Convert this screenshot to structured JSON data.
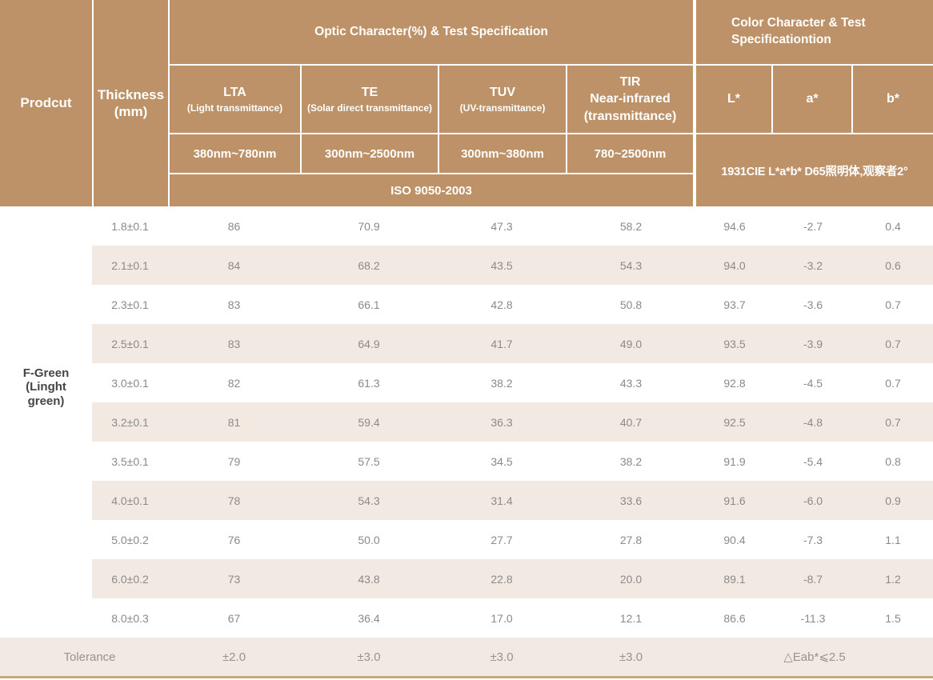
{
  "header": {
    "product": "Prodcut",
    "thickness": "Thickness\n(mm)",
    "optic_group": "Optic Character(%) & Test Specification",
    "color_group": "Color Character & Test\nSpecificationtion",
    "optic_columns": [
      {
        "title": "LTA",
        "sub": "(Light transmittance)",
        "range": "380nm~780nm"
      },
      {
        "title": "TE",
        "sub": "(Solar direct transmittance)",
        "range": "300nm~2500nm"
      },
      {
        "title": "TUV",
        "sub": "(UV-transmittance)",
        "range": "300nm~380nm"
      },
      {
        "title": "TIR\nNear-infrared\n(transmittance)",
        "sub": "",
        "range": "780~2500nm"
      }
    ],
    "optic_standard": "ISO 9050-2003",
    "color_columns": [
      "L*",
      "a*",
      "b*"
    ],
    "color_standard": "1931CIE L*a*b*  D65照明体,观察者2°"
  },
  "product": {
    "name": "F-Green\n(Linght\ngreen)"
  },
  "rows": [
    {
      "thickness": "1.8±0.1",
      "values": [
        "86",
        "70.9",
        "47.3",
        "58.2",
        "94.6",
        "-2.7",
        "0.4"
      ]
    },
    {
      "thickness": "2.1±0.1",
      "values": [
        "84",
        "68.2",
        "43.5",
        "54.3",
        "94.0",
        "-3.2",
        "0.6"
      ]
    },
    {
      "thickness": "2.3±0.1",
      "values": [
        "83",
        "66.1",
        "42.8",
        "50.8",
        "93.7",
        "-3.6",
        "0.7"
      ]
    },
    {
      "thickness": "2.5±0.1",
      "values": [
        "83",
        "64.9",
        "41.7",
        "49.0",
        "93.5",
        "-3.9",
        "0.7"
      ]
    },
    {
      "thickness": "3.0±0.1",
      "values": [
        "82",
        "61.3",
        "38.2",
        "43.3",
        "92.8",
        "-4.5",
        "0.7"
      ]
    },
    {
      "thickness": "3.2±0.1",
      "values": [
        "81",
        "59.4",
        "36.3",
        "40.7",
        "92.5",
        "-4.8",
        "0.7"
      ]
    },
    {
      "thickness": "3.5±0.1",
      "values": [
        "79",
        "57.5",
        "34.5",
        "38.2",
        "91.9",
        "-5.4",
        "0.8"
      ]
    },
    {
      "thickness": "4.0±0.1",
      "values": [
        "78",
        "54.3",
        "31.4",
        "33.6",
        "91.6",
        "-6.0",
        "0.9"
      ]
    },
    {
      "thickness": "5.0±0.2",
      "values": [
        "76",
        "50.0",
        "27.7",
        "27.8",
        "90.4",
        "-7.3",
        "1.1"
      ]
    },
    {
      "thickness": "6.0±0.2",
      "values": [
        "73",
        "43.8",
        "22.8",
        "20.0",
        "89.1",
        "-8.7",
        "1.2"
      ]
    },
    {
      "thickness": "8.0±0.3",
      "values": [
        "67",
        "36.4",
        "17.0",
        "12.1",
        "86.6",
        "-11.3",
        "1.5"
      ]
    }
  ],
  "tolerance": {
    "label": "Tolerance",
    "values": [
      "±2.0",
      "±3.0",
      "±3.0",
      "±3.0"
    ],
    "color_value": "△Eab*⩽2.5"
  },
  "colors": {
    "header_tan": "#BE9268",
    "stripe_beige": "#F3E9E3",
    "bottom_border": "#CBA77B",
    "data_text": "#8A8A8A",
    "product_text": "#474442",
    "header_text": "#FFFFFF"
  }
}
